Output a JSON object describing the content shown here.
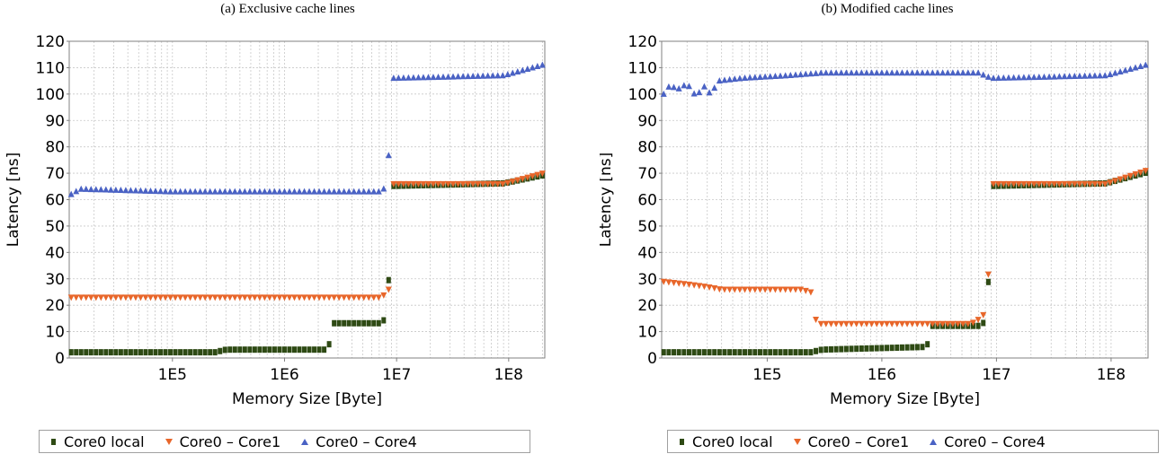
{
  "chart_data": [
    {
      "type": "scatter",
      "title": "(a) Exclusive cache lines",
      "xlabel": "Memory Size [Byte]",
      "ylabel": "Latency [ns]",
      "xscale": "log",
      "xlim": [
        12000,
        210000000
      ],
      "ylim": [
        0,
        120
      ],
      "xticks": [
        "1E5",
        "1E6",
        "1E7",
        "1E8"
      ],
      "yticks": [
        "0",
        "10",
        "20",
        "30",
        "40",
        "50",
        "60",
        "70",
        "80",
        "90",
        "100",
        "110",
        "120"
      ],
      "grid": true,
      "legend_position": "bottom",
      "series": [
        {
          "name": "Core0 local",
          "color": "#2e4a14",
          "marker": "square",
          "points": [
            [
              12500,
              2
            ],
            [
              240000,
              2
            ],
            [
              300000,
              3
            ],
            [
              2400000,
              3
            ],
            [
              2500000,
              5
            ],
            [
              2700000,
              13
            ],
            [
              7000000,
              13
            ],
            [
              7600000,
              14
            ],
            [
              8300000,
              15
            ],
            [
              9000000,
              65
            ],
            [
              90000000,
              66
            ],
            [
              200000000,
              69
            ]
          ]
        },
        {
          "name": "Core0 – Core1",
          "color": "#e8662a",
          "marker": "triangle-down",
          "points": [
            [
              12500,
              23
            ],
            [
              7000000,
              23
            ],
            [
              7800000,
              24
            ],
            [
              8500000,
              26
            ],
            [
              9000000,
              66
            ],
            [
              90000000,
              66
            ],
            [
              200000000,
              70
            ]
          ]
        },
        {
          "name": "Core0 – Core4",
          "color": "#4a62c4",
          "marker": "triangle-up",
          "points": [
            [
              12500,
              62
            ],
            [
              15000,
              64
            ],
            [
              100000,
              63
            ],
            [
              1000000,
              63
            ],
            [
              7000000,
              63
            ],
            [
              8300000,
              65
            ],
            [
              9000000,
              106
            ],
            [
              90000000,
              107
            ],
            [
              200000000,
              111
            ]
          ]
        }
      ]
    },
    {
      "type": "scatter",
      "title": "(b) Modified cache lines",
      "xlabel": "Memory Size [Byte]",
      "ylabel": "Latency [ns]",
      "xscale": "log",
      "xlim": [
        12000,
        210000000
      ],
      "ylim": [
        0,
        120
      ],
      "xticks": [
        "1E5",
        "1E6",
        "1E7",
        "1E8"
      ],
      "yticks": [
        "0",
        "10",
        "20",
        "30",
        "40",
        "50",
        "60",
        "70",
        "80",
        "90",
        "100",
        "110",
        "120"
      ],
      "grid": true,
      "legend_position": "bottom",
      "series": [
        {
          "name": "Core0 local",
          "color": "#2e4a14",
          "marker": "square",
          "points": [
            [
              12500,
              2
            ],
            [
              240000,
              2
            ],
            [
              300000,
              3
            ],
            [
              2300000,
              4
            ],
            [
              2500000,
              5
            ],
            [
              2700000,
              12
            ],
            [
              7000000,
              12
            ],
            [
              7600000,
              13
            ],
            [
              8300000,
              14
            ],
            [
              9000000,
              65
            ],
            [
              90000000,
              66
            ],
            [
              200000000,
              70
            ]
          ]
        },
        {
          "name": "Core0 – Core1",
          "color": "#e8662a",
          "marker": "triangle-down",
          "points": [
            [
              12500,
              29
            ],
            [
              20000,
              28
            ],
            [
              30000,
              27
            ],
            [
              40000,
              26
            ],
            [
              200000,
              26
            ],
            [
              240000,
              25
            ],
            [
              270000,
              13
            ],
            [
              6000000,
              13
            ],
            [
              7200000,
              15
            ],
            [
              8300000,
              18
            ],
            [
              9000000,
              66
            ],
            [
              90000000,
              66
            ],
            [
              200000000,
              71
            ]
          ]
        },
        {
          "name": "Core0 – Core4",
          "color": "#4a62c4",
          "marker": "triangle-up",
          "points": [
            [
              12500,
              100
            ],
            [
              14000,
              103
            ],
            [
              17000,
              102
            ],
            [
              20000,
              104
            ],
            [
              24000,
              99
            ],
            [
              28000,
              103
            ],
            [
              32000,
              100
            ],
            [
              38000,
              105
            ],
            [
              60000,
              106
            ],
            [
              150000,
              107
            ],
            [
              300000,
              108
            ],
            [
              7000000,
              108
            ],
            [
              9000000,
              106
            ],
            [
              90000000,
              107
            ],
            [
              200000000,
              111
            ]
          ]
        }
      ]
    }
  ]
}
